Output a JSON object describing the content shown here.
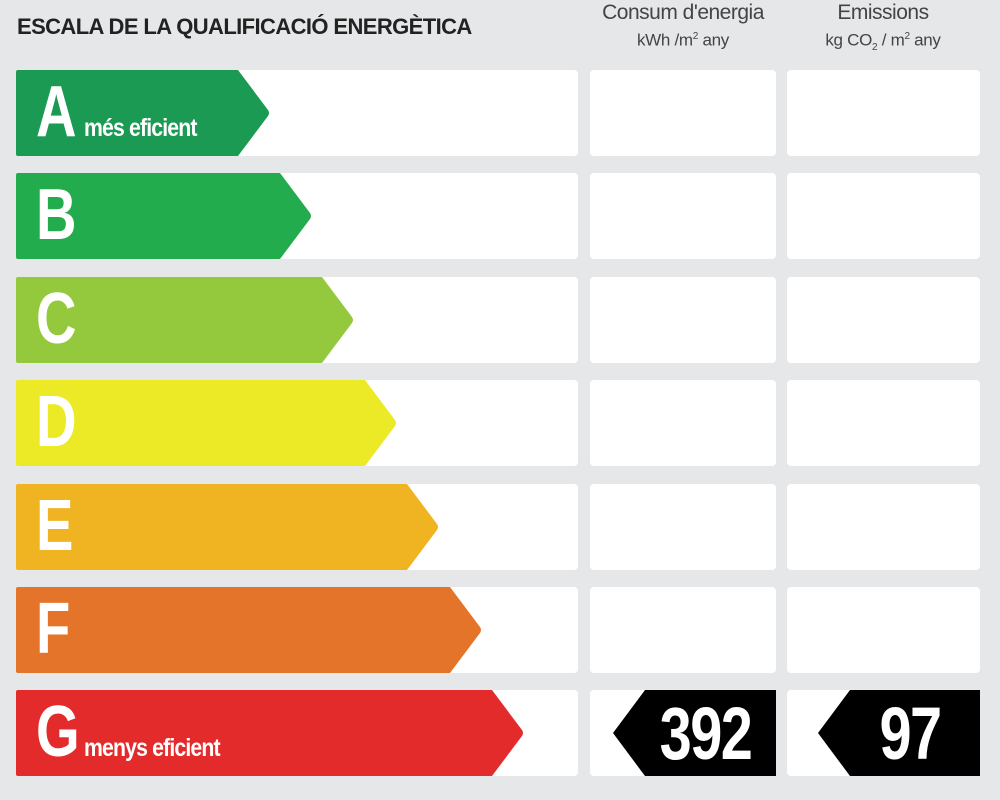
{
  "title": "ESCALA DE LA QUALIFICACIÓ ENERGÈTICA",
  "columns": {
    "consum": {
      "title": "Consum d'energia",
      "unit_prefix": "kWh /m",
      "unit_sup": "2",
      "unit_suffix": " any"
    },
    "emissions": {
      "title": "Emissions",
      "unit_prefix": "kg CO",
      "unit_sub": "2",
      "unit_mid": " / m",
      "unit_sup": "2",
      "unit_suffix": " any"
    }
  },
  "classes": [
    {
      "letter": "A",
      "label": "més eficient",
      "color": "#1a9a52"
    },
    {
      "letter": "B",
      "label": "",
      "color": "#22ac4d"
    },
    {
      "letter": "C",
      "label": "",
      "color": "#94c83d"
    },
    {
      "letter": "D",
      "label": "",
      "color": "#ecea27"
    },
    {
      "letter": "E",
      "label": "",
      "color": "#f0b322"
    },
    {
      "letter": "F",
      "label": "",
      "color": "#e4742a"
    },
    {
      "letter": "G",
      "label": "menys eficient",
      "color": "#e42b2c"
    }
  ],
  "rating": {
    "class": "G",
    "consum_value": "392",
    "emissions_value": "97"
  }
}
